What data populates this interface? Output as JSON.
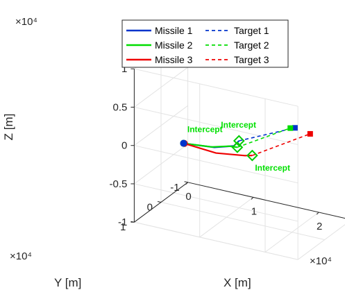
{
  "chart_data": {
    "type": "line",
    "projection": "3d",
    "grid": true,
    "legend_placement": "top",
    "xlabel": "X [m]",
    "ylabel": "Y [m]",
    "zlabel": "Z [m]",
    "x_exponent": "×10⁴",
    "y_exponent": "×10⁴",
    "z_exponent": "×10⁴",
    "xlim": [
      0,
      25000
    ],
    "ylim": [
      -10000,
      10000
    ],
    "zlim": [
      -10000,
      10000
    ],
    "x_ticks": [
      0,
      10000,
      20000
    ],
    "x_tick_labels": [
      "0",
      "1",
      "2"
    ],
    "y_ticks": [
      -10000,
      0,
      10000
    ],
    "y_tick_labels": [
      "-1",
      "0",
      "1"
    ],
    "z_ticks": [
      -10000,
      -5000,
      0,
      5000,
      10000
    ],
    "z_tick_labels": [
      "-1",
      "-0.5",
      "0",
      "0.5",
      "1"
    ],
    "series": [
      {
        "name": "Missile 1",
        "color": "#0033cc",
        "style": "solid",
        "points": [
          [
            1800,
            -4000,
            -3000
          ],
          [
            7000,
            -2800,
            -2200
          ],
          [
            10500,
            -1500,
            -1000
          ],
          [
            11500,
            -1000,
            0
          ]
        ]
      },
      {
        "name": "Target 1",
        "color": "#0033cc",
        "style": "dashed",
        "points": [
          [
            11500,
            -1000,
            0
          ],
          [
            22500,
            5000,
            5400
          ]
        ]
      },
      {
        "name": "Missile 2",
        "color": "#00dd00",
        "style": "solid",
        "points": [
          [
            1800,
            -4000,
            -3000
          ],
          [
            6500,
            -3000,
            -2300
          ],
          [
            9500,
            -2200,
            -1400
          ],
          [
            11000,
            -1600,
            -1100
          ]
        ]
      },
      {
        "name": "Target 2",
        "color": "#00dd00",
        "style": "dashed",
        "points": [
          [
            11000,
            -1600,
            -1100
          ],
          [
            22000,
            5500,
            5400
          ]
        ]
      },
      {
        "name": "Missile 3",
        "color": "#ee0000",
        "style": "solid",
        "points": [
          [
            1800,
            -4300,
            -3100
          ],
          [
            7000,
            -3400,
            -3100
          ],
          [
            11500,
            -3200,
            -2500
          ],
          [
            12700,
            -3000,
            -2200
          ]
        ]
      },
      {
        "name": "Target 3",
        "color": "#ee0000",
        "style": "dashed",
        "points": [
          [
            12700,
            -3000,
            -2200
          ],
          [
            24500,
            4200,
            4800
          ]
        ]
      }
    ],
    "annotations": [
      {
        "text": "Intercept",
        "series": "Missile 1"
      },
      {
        "text": "Intercept",
        "series": "Missile 2"
      },
      {
        "text": "Intercept",
        "series": "Missile 3"
      }
    ]
  }
}
